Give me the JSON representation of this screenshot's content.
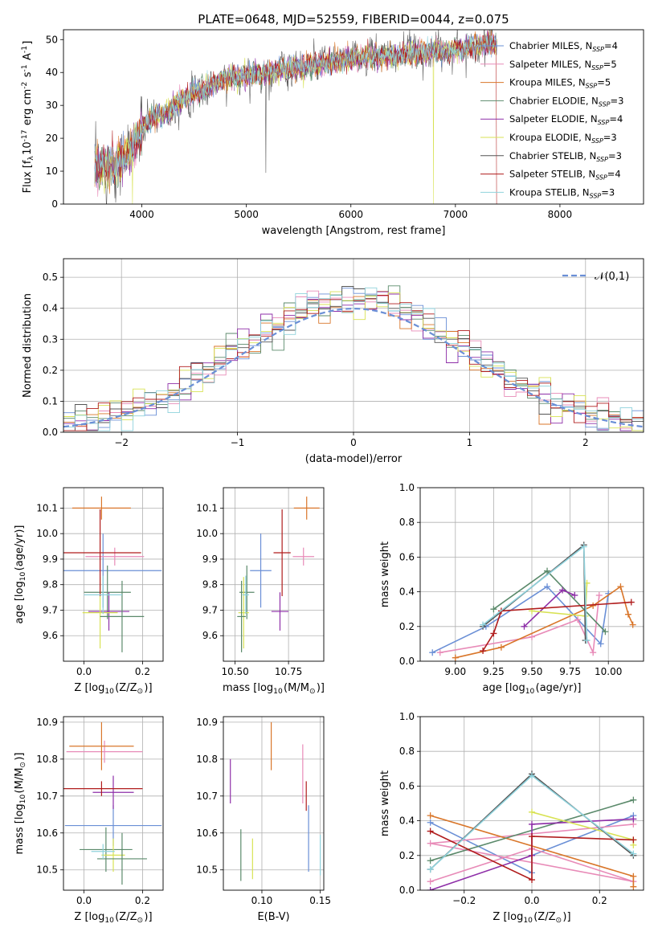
{
  "chart_data": [
    {
      "id": "spectrum",
      "type": "line",
      "title": "PLATE=0648, MJD=52559, FIBERID=0044, z=0.075",
      "xlabel": "wavelength [Angstrom, rest frame]",
      "ylabel": "Flux [f$_\\lambda$10$^{-17}$ erg cm$^{-2}$ s$^{-1}$ A$^{-1}$]",
      "xlim": [
        3250,
        8800
      ],
      "ylim": [
        0,
        53
      ],
      "xticks": [
        4000,
        5000,
        6000,
        7000,
        8000
      ],
      "yticks": [
        0,
        10,
        20,
        30,
        40,
        50
      ],
      "grid": false,
      "legend_position": "upper right",
      "continuum": {
        "x": [
          3550,
          3700,
          3850,
          3950,
          4000,
          4100,
          4250,
          4400,
          4600,
          4800,
          5000,
          5200,
          5400,
          5600,
          5800,
          6000,
          6200,
          6400,
          6600,
          6800,
          7000,
          7200,
          7400
        ],
        "y": [
          11,
          12,
          14,
          20,
          23,
          26,
          28,
          32,
          35,
          38,
          39,
          40,
          41,
          42,
          43,
          44,
          45,
          45,
          46,
          46,
          47,
          48,
          49
        ]
      },
      "series": [
        {
          "name": "Chabrier MILES",
          "nssp": "4",
          "color": "#6a8fd6"
        },
        {
          "name": "Salpeter MILES",
          "nssp": "5",
          "color": "#e88bb8"
        },
        {
          "name": "Kroupa MILES",
          "nssp": "5",
          "color": "#d9762a"
        },
        {
          "name": "Chabrier ELODIE",
          "nssp": "3",
          "color": "#5b8a6b"
        },
        {
          "name": "Salpeter ELODIE",
          "nssp": "4",
          "color": "#8e2fa8"
        },
        {
          "name": "Kroupa ELODIE",
          "nssp": "3",
          "color": "#d8e254"
        },
        {
          "name": "Chabrier STELIB",
          "nssp": "3",
          "color": "#555555"
        },
        {
          "name": "Salpeter STELIB",
          "nssp": "4",
          "color": "#b01c1c"
        },
        {
          "name": "Kroupa STELIB",
          "nssp": "3",
          "color": "#8fd2dc"
        }
      ]
    },
    {
      "id": "residuals",
      "type": "histogram",
      "xlabel": "(data-model)/error",
      "ylabel": "Normed distribution",
      "xlim": [
        -2.5,
        2.5
      ],
      "ylim": [
        0,
        0.56
      ],
      "xticks": [
        -2,
        -1,
        0,
        1,
        2
      ],
      "yticks": [
        0.0,
        0.1,
        0.2,
        0.3,
        0.4,
        0.5
      ],
      "grid": true,
      "legend_label": "$\\mathcal{N}(0,1)$",
      "bin_width": 0.1
    },
    {
      "id": "age_vs_Z",
      "type": "errorbar",
      "xlabel": "Z [log$_{10}$(Z/Z$_\\odot$)]",
      "ylabel": "age  [log$_{10}$(age/yr)]",
      "xlim": [
        -0.07,
        0.27
      ],
      "ylim": [
        9.5,
        10.18
      ],
      "xticks": [
        0.0,
        0.2
      ],
      "yticks": [
        9.6,
        9.7,
        9.8,
        9.9,
        10.0,
        10.1
      ],
      "grid": true,
      "points": [
        {
          "x": 0.065,
          "xerr": 0.2,
          "y": 9.855,
          "yerr": 0.145,
          "color": "#6a8fd6"
        },
        {
          "x": 0.105,
          "xerr": 0.1,
          "y": 9.91,
          "yerr": 0.035,
          "color": "#e88bb8"
        },
        {
          "x": 0.06,
          "xerr": 0.1,
          "y": 10.1,
          "yerr": 0.045,
          "color": "#d9762a"
        },
        {
          "x": 0.08,
          "xerr": 0.08,
          "y": 9.77,
          "yerr": 0.105,
          "color": "#5b8a6b"
        },
        {
          "x": 0.085,
          "xerr": 0.07,
          "y": 9.695,
          "yerr": 0.075,
          "color": "#8e2fa8"
        },
        {
          "x": 0.055,
          "xerr": 0.06,
          "y": 9.69,
          "yerr": 0.14,
          "color": "#d8e254"
        },
        {
          "x": 0.13,
          "xerr": 0.075,
          "y": 9.675,
          "yerr": 0.14,
          "color": "#5b8a6b"
        },
        {
          "x": 0.055,
          "xerr": 0.14,
          "y": 9.925,
          "yerr": 0.17,
          "color": "#b01c1c"
        },
        {
          "x": 0.065,
          "xerr": 0.065,
          "y": 9.76,
          "yerr": 0.075,
          "color": "#8fd2dc"
        }
      ]
    },
    {
      "id": "age_vs_mass",
      "type": "errorbar",
      "xlabel": "mass [log$_{10}$(M/M$_\\odot$)]",
      "ylabel": "",
      "xlim": [
        10.445,
        10.915
      ],
      "ylim": [
        9.5,
        10.18
      ],
      "xticks": [
        10.5,
        10.75
      ],
      "yticks": [
        9.6,
        9.7,
        9.8,
        9.9,
        10.0,
        10.1
      ],
      "grid": true,
      "points": [
        {
          "x": 10.62,
          "xerr": 0.05,
          "y": 9.855,
          "yerr": 0.145,
          "color": "#6a8fd6"
        },
        {
          "x": 10.82,
          "xerr": 0.05,
          "y": 9.91,
          "yerr": 0.035,
          "color": "#e88bb8"
        },
        {
          "x": 10.835,
          "xerr": 0.06,
          "y": 10.1,
          "yerr": 0.045,
          "color": "#d9762a"
        },
        {
          "x": 10.555,
          "xerr": 0.035,
          "y": 9.77,
          "yerr": 0.105,
          "color": "#5b8a6b"
        },
        {
          "x": 10.71,
          "xerr": 0.04,
          "y": 9.695,
          "yerr": 0.075,
          "color": "#8e2fa8"
        },
        {
          "x": 10.54,
          "xerr": 0.025,
          "y": 9.69,
          "yerr": 0.14,
          "color": "#d8e254"
        },
        {
          "x": 10.53,
          "xerr": 0.02,
          "y": 9.675,
          "yerr": 0.14,
          "color": "#5b8a6b"
        },
        {
          "x": 10.72,
          "xerr": 0.04,
          "y": 9.925,
          "yerr": 0.17,
          "color": "#b01c1c"
        },
        {
          "x": 10.55,
          "xerr": 0.015,
          "y": 9.76,
          "yerr": 0.075,
          "color": "#8fd2dc"
        }
      ]
    },
    {
      "id": "sfh_age",
      "type": "line",
      "xlabel": "age  [log$_{10}$(age/yr)]",
      "ylabel": "mass weight",
      "xlim": [
        8.77,
        10.23
      ],
      "ylim": [
        0,
        1.0
      ],
      "xticks": [
        9.0,
        9.25,
        9.5,
        9.75,
        10.0
      ],
      "yticks": [
        0.0,
        0.2,
        0.4,
        0.6,
        0.8,
        1.0
      ],
      "grid": true,
      "series": [
        {
          "color": "#6a8fd6",
          "x": [
            8.85,
            9.2,
            9.6,
            9.95,
            10.0
          ],
          "y": [
            0.05,
            0.2,
            0.43,
            0.1,
            0.39
          ]
        },
        {
          "color": "#e88bb8",
          "x": [
            8.9,
            9.5,
            9.8,
            9.9,
            9.94
          ],
          "y": [
            0.05,
            0.14,
            0.24,
            0.05,
            0.38
          ]
        },
        {
          "color": "#d9762a",
          "x": [
            9.0,
            9.3,
            9.9,
            10.08,
            10.13,
            10.16
          ],
          "y": [
            0.02,
            0.08,
            0.32,
            0.43,
            0.27,
            0.21
          ]
        },
        {
          "color": "#5b8a6b",
          "x": [
            9.25,
            9.6,
            9.98
          ],
          "y": [
            0.3,
            0.52,
            0.17
          ]
        },
        {
          "color": "#8e2fa8",
          "x": [
            9.45,
            9.7,
            9.78
          ],
          "y": [
            0.2,
            0.41,
            0.38
          ]
        },
        {
          "color": "#d8e254",
          "x": [
            9.5,
            9.85,
            9.86
          ],
          "y": [
            0.29,
            0.26,
            0.45
          ]
        },
        {
          "color": "#555555",
          "x": [
            9.18,
            9.84,
            9.85
          ],
          "y": [
            0.2,
            0.67,
            0.12
          ]
        },
        {
          "color": "#b01c1c",
          "x": [
            9.18,
            9.25,
            9.3,
            10.15
          ],
          "y": [
            0.06,
            0.16,
            0.29,
            0.34
          ]
        },
        {
          "color": "#8fd2dc",
          "x": [
            9.18,
            9.84,
            9.86
          ],
          "y": [
            0.21,
            0.66,
            0.12
          ]
        }
      ]
    },
    {
      "id": "mass_vs_Z",
      "type": "errorbar",
      "xlabel": "Z [log$_{10}$(Z/Z$_\\odot$)]",
      "ylabel": "mass [log$_{10}$(M/M$_\\odot$)]",
      "xlim": [
        -0.07,
        0.27
      ],
      "ylim": [
        10.445,
        10.915
      ],
      "xticks": [
        0.0,
        0.2
      ],
      "yticks": [
        10.5,
        10.6,
        10.7,
        10.8,
        10.9
      ],
      "grid": true,
      "points": [
        {
          "x": 0.1,
          "xerr": 0.165,
          "y": 10.62,
          "yerr": 0.055,
          "color": "#6a8fd6"
        },
        {
          "x": 0.07,
          "xerr": 0.13,
          "y": 10.82,
          "yerr": 0.03,
          "color": "#e88bb8"
        },
        {
          "x": 0.06,
          "xerr": 0.11,
          "y": 10.835,
          "yerr": 0.065,
          "color": "#d9762a"
        },
        {
          "x": 0.075,
          "xerr": 0.09,
          "y": 10.555,
          "yerr": 0.06,
          "color": "#5b8a6b"
        },
        {
          "x": 0.1,
          "xerr": 0.07,
          "y": 10.71,
          "yerr": 0.045,
          "color": "#8e2fa8"
        },
        {
          "x": 0.1,
          "xerr": 0.04,
          "y": 10.54,
          "yerr": 0.045,
          "color": "#d8e254"
        },
        {
          "x": 0.13,
          "xerr": 0.085,
          "y": 10.53,
          "yerr": 0.07,
          "color": "#5b8a6b"
        },
        {
          "x": 0.06,
          "xerr": 0.14,
          "y": 10.72,
          "yerr": 0.02,
          "color": "#b01c1c"
        },
        {
          "x": 0.065,
          "xerr": 0.04,
          "y": 10.55,
          "yerr": 0.02,
          "color": "#8fd2dc"
        }
      ]
    },
    {
      "id": "mass_vs_EBV",
      "type": "errorbar",
      "xlabel": "E(B-V)",
      "ylabel": "",
      "xlim": [
        0.067,
        0.153
      ],
      "ylim": [
        10.445,
        10.915
      ],
      "xticks": [
        0.1,
        0.15
      ],
      "yticks": [
        10.5,
        10.6,
        10.7,
        10.8,
        10.9
      ],
      "grid": true,
      "points": [
        {
          "x": 0.14,
          "xerr": 0,
          "y": 10.585,
          "yerr": 0.09,
          "color": "#6a8fd6"
        },
        {
          "x": 0.135,
          "xerr": 0,
          "y": 10.76,
          "yerr": 0.08,
          "color": "#e88bb8"
        },
        {
          "x": 0.108,
          "xerr": 0,
          "y": 10.835,
          "yerr": 0.065,
          "color": "#d9762a"
        },
        {
          "x": 0.082,
          "xerr": 0,
          "y": 10.54,
          "yerr": 0.07,
          "color": "#5b8a6b"
        },
        {
          "x": 0.073,
          "xerr": 0,
          "y": 10.74,
          "yerr": 0.06,
          "color": "#8e2fa8"
        },
        {
          "x": 0.092,
          "xerr": 0,
          "y": 10.53,
          "yerr": 0.055,
          "color": "#d8e254"
        },
        {
          "x": 0.138,
          "xerr": 0,
          "y": 10.7,
          "yerr": 0.04,
          "color": "#b01c1c"
        },
        {
          "x": 0.15,
          "xerr": 0,
          "y": 10.54,
          "yerr": 0.055,
          "color": "#8fd2dc"
        }
      ]
    },
    {
      "id": "sfh_Z",
      "type": "line",
      "xlabel": "Z [log$_{10}$(Z/Z$_\\odot$)]",
      "ylabel": "mass weight",
      "xlim": [
        -0.33,
        0.33
      ],
      "ylim": [
        0,
        1.0
      ],
      "xticks": [
        -0.2,
        0.0,
        0.2
      ],
      "yticks": [
        0.0,
        0.2,
        0.4,
        0.6,
        0.8,
        1.0
      ],
      "grid": true,
      "series": [
        {
          "color": "#6a8fd6",
          "x": [
            -0.3,
            0.0,
            0.0,
            0.3
          ],
          "y": [
            0.39,
            0.1,
            0.2,
            0.43
          ]
        },
        {
          "color": "#e88bb8",
          "x": [
            -0.3,
            0.0,
            0.3,
            -0.3,
            0.3
          ],
          "y": [
            0.05,
            0.24,
            0.05,
            0.27,
            0.38
          ]
        },
        {
          "color": "#d9762a",
          "x": [
            -0.3,
            0.3,
            0.3
          ],
          "y": [
            0.43,
            0.08,
            0.02
          ]
        },
        {
          "color": "#5b8a6b",
          "x": [
            -0.3,
            0.3
          ],
          "y": [
            0.17,
            0.52
          ]
        },
        {
          "color": "#8e2fa8",
          "x": [
            -0.3,
            0.0,
            0.0,
            0.3
          ],
          "y": [
            0.0,
            0.2,
            0.38,
            0.41
          ]
        },
        {
          "color": "#d8e254",
          "x": [
            0.0,
            0.3,
            0.3
          ],
          "y": [
            0.45,
            0.29,
            0.26
          ]
        },
        {
          "color": "#555555",
          "x": [
            -0.3,
            0.0,
            0.3
          ],
          "y": [
            0.12,
            0.67,
            0.2
          ]
        },
        {
          "color": "#b01c1c",
          "x": [
            -0.3,
            0.0,
            0.0,
            0.3
          ],
          "y": [
            0.34,
            0.06,
            0.31,
            0.29
          ]
        },
        {
          "color": "#8fd2dc",
          "x": [
            -0.3,
            0.0,
            0.3
          ],
          "y": [
            0.12,
            0.66,
            0.21
          ]
        }
      ]
    }
  ]
}
